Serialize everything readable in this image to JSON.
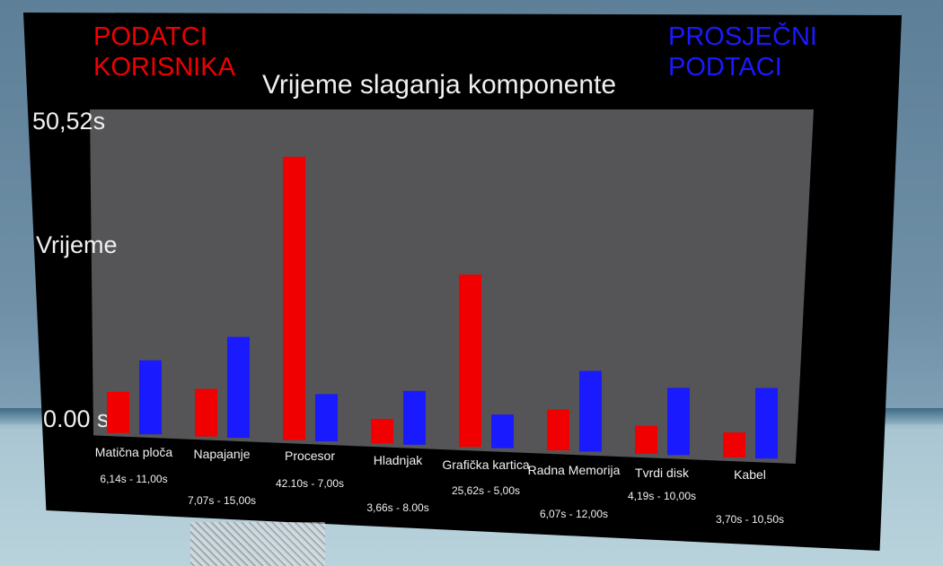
{
  "chart_data": {
    "type": "bar",
    "title": "Vrijeme slaganja komponente",
    "ylabel": "Vrijeme",
    "y_tick_labels": {
      "max": "50,52s",
      "min": "0.00 s"
    },
    "ylim": [
      0,
      50.52
    ],
    "grid": false,
    "legend": [
      {
        "label": "PODATCI KORISNIKA",
        "color": "#f00000"
      },
      {
        "label": "PROSJEČNI PODTACI",
        "color": "#1a1aff"
      }
    ],
    "categories": [
      "Matična ploča",
      "Napajanje",
      "Procesor",
      "Hladnjak",
      "Grafička kartica",
      "Radna Memorija",
      "Tvrdi disk",
      "Kabel"
    ],
    "value_labels": [
      "6,14s - 11,00s",
      "7,07s - 15,00s",
      "42.10s - 7,00s",
      "3,66s - 8.00s",
      "25,62s - 5,00s",
      "6,07s - 12,00s",
      "4,19s - 10,00s",
      "3,70s - 10,50s"
    ],
    "series": [
      {
        "color": "#f00000",
        "values": [
          6.14,
          7.07,
          42.1,
          3.66,
          25.62,
          6.07,
          4.19,
          3.7
        ]
      },
      {
        "color": "#1a1aff",
        "values": [
          11.0,
          15.0,
          7.0,
          8.0,
          5.0,
          12.0,
          10.0,
          10.5
        ]
      }
    ]
  }
}
